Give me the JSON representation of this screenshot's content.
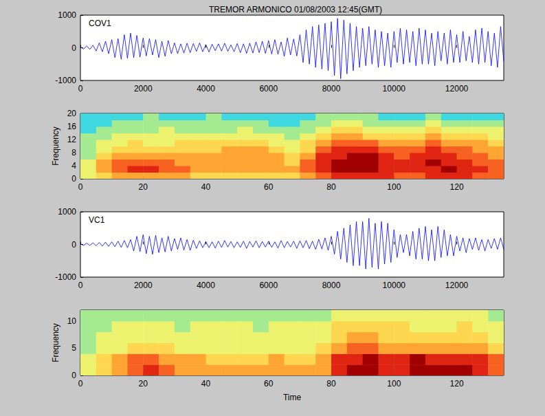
{
  "chart_data": [
    {
      "type": "line",
      "title": "TREMOR ARMONICO 01/08/2003 12:45(GMT)",
      "annotation": "COV1",
      "color": "#0000ff",
      "xlim": [
        0,
        13500
      ],
      "xticks": [
        0,
        2000,
        4000,
        6000,
        8000,
        10000,
        12000
      ],
      "ylim": [
        -1000,
        1000
      ],
      "yticks": [
        -1000,
        0,
        1000
      ],
      "x": [
        0,
        100,
        200,
        300,
        400,
        500,
        600,
        700,
        800,
        900,
        1000,
        1100,
        1200,
        1300,
        1400,
        1500,
        1600,
        1700,
        1800,
        1900,
        2000,
        2100,
        2200,
        2300,
        2400,
        2500,
        2600,
        2700,
        2800,
        2900,
        3000,
        3100,
        3200,
        3300,
        3400,
        3500,
        3600,
        3700,
        3800,
        3900,
        4000,
        4100,
        4200,
        4300,
        4400,
        4500,
        4600,
        4700,
        4800,
        4900,
        5000,
        5100,
        5200,
        5300,
        5400,
        5500,
        5600,
        5700,
        5800,
        5900,
        6000,
        6100,
        6200,
        6300,
        6400,
        6500,
        6600,
        6700,
        6800,
        6900,
        7000,
        7100,
        7200,
        7300,
        7400,
        7500,
        7600,
        7700,
        7800,
        7900,
        8000,
        8100,
        8200,
        8300,
        8400,
        8500,
        8600,
        8700,
        8800,
        8900,
        9000,
        9100,
        9200,
        9300,
        9400,
        9500,
        9600,
        9700,
        9800,
        9900,
        10000,
        10100,
        10200,
        10300,
        10400,
        10500,
        10600,
        10700,
        10800,
        10900,
        11000,
        11100,
        11200,
        11300,
        11400,
        11500,
        11600,
        11700,
        11800,
        11900,
        12000,
        12100,
        12200,
        12300,
        12400,
        12500,
        12600,
        12700,
        12800,
        12900,
        13000,
        13100,
        13200,
        13300,
        13400,
        13500
      ],
      "values": [
        30,
        -40,
        60,
        -50,
        80,
        -100,
        150,
        -120,
        200,
        -180,
        250,
        -300,
        280,
        -350,
        400,
        -320,
        450,
        -300,
        380,
        -280,
        300,
        -250,
        280,
        -220,
        250,
        -300,
        200,
        -260,
        220,
        -180,
        150,
        -180,
        120,
        -160,
        140,
        -150,
        130,
        -110,
        150,
        -120,
        100,
        -130,
        110,
        -90,
        120,
        -100,
        140,
        -110,
        90,
        -120,
        130,
        -150,
        120,
        -170,
        140,
        -160,
        180,
        -150,
        200,
        -170,
        220,
        -190,
        250,
        -200,
        180,
        -260,
        300,
        -220,
        270,
        -250,
        400,
        -450,
        550,
        -500,
        650,
        -600,
        700,
        -650,
        750,
        -700,
        800,
        -850,
        900,
        -950,
        850,
        -800,
        750,
        -700,
        650,
        -600,
        600,
        -550,
        650,
        -500,
        550,
        -600,
        500,
        -550,
        450,
        -600,
        500,
        -450,
        600,
        -500,
        550,
        -450,
        500,
        -550,
        600,
        -500,
        550,
        -500,
        450,
        -550,
        500,
        -400,
        450,
        -500,
        550,
        -450,
        400,
        -450,
        500,
        -400,
        350,
        -450,
        550,
        -500,
        600,
        -450,
        500,
        -550,
        450,
        -600,
        650,
        -400
      ]
    },
    {
      "type": "heatmap",
      "ylabel": "Frequency",
      "xlim": [
        0,
        135
      ],
      "xticks": [
        0,
        20,
        40,
        60,
        80,
        100,
        120
      ],
      "ylim": [
        0,
        20
      ],
      "yticks": [
        0,
        4,
        8,
        12,
        16,
        20
      ],
      "time_bins": [
        0,
        5,
        10,
        15,
        20,
        25,
        30,
        35,
        40,
        45,
        50,
        55,
        60,
        65,
        70,
        75,
        80,
        85,
        90,
        95,
        100,
        105,
        110,
        115,
        120,
        125,
        130,
        135
      ],
      "frequency_bins": [
        0,
        2,
        4,
        6,
        8,
        10,
        12,
        14,
        16,
        18,
        20
      ],
      "intensity": [
        [
          4,
          5,
          6,
          6,
          6,
          6,
          6,
          5,
          5,
          5,
          5,
          5,
          5,
          5,
          6,
          7,
          8,
          8,
          8,
          8,
          7,
          7,
          8,
          8,
          8,
          7,
          7
        ],
        [
          4,
          6,
          7,
          8,
          8,
          7,
          7,
          6,
          6,
          6,
          6,
          6,
          6,
          6,
          7,
          8,
          9,
          9,
          9,
          8,
          8,
          8,
          8,
          9,
          8,
          8,
          7
        ],
        [
          4,
          6,
          7,
          7,
          7,
          7,
          6,
          6,
          6,
          6,
          6,
          6,
          6,
          5,
          7,
          8,
          9,
          9,
          9,
          8,
          8,
          8,
          9,
          8,
          8,
          7,
          7
        ],
        [
          3,
          5,
          6,
          6,
          6,
          6,
          6,
          6,
          6,
          6,
          6,
          6,
          6,
          5,
          6,
          8,
          8,
          9,
          9,
          8,
          7,
          8,
          8,
          8,
          7,
          7,
          6
        ],
        [
          3,
          4,
          5,
          5,
          5,
          5,
          5,
          5,
          5,
          6,
          6,
          6,
          5,
          4,
          5,
          7,
          8,
          8,
          8,
          7,
          7,
          7,
          8,
          7,
          7,
          6,
          6
        ],
        [
          3,
          4,
          4,
          5,
          4,
          4,
          5,
          5,
          5,
          5,
          5,
          5,
          4,
          4,
          5,
          6,
          7,
          7,
          7,
          6,
          6,
          6,
          7,
          6,
          6,
          6,
          5
        ],
        [
          3,
          3,
          4,
          4,
          4,
          4,
          4,
          4,
          4,
          4,
          4,
          4,
          4,
          3,
          4,
          5,
          6,
          6,
          5,
          5,
          5,
          5,
          6,
          5,
          5,
          5,
          4
        ],
        [
          2,
          3,
          3,
          3,
          3,
          4,
          3,
          3,
          3,
          3,
          4,
          3,
          3,
          3,
          3,
          4,
          5,
          5,
          4,
          4,
          4,
          4,
          5,
          4,
          4,
          4,
          4
        ],
        [
          2,
          2,
          3,
          3,
          3,
          3,
          3,
          3,
          3,
          3,
          3,
          3,
          2,
          2,
          3,
          3,
          4,
          4,
          3,
          3,
          3,
          3,
          4,
          3,
          3,
          3,
          3
        ],
        [
          2,
          2,
          2,
          2,
          3,
          2,
          2,
          2,
          3,
          2,
          2,
          2,
          2,
          2,
          2,
          3,
          3,
          3,
          3,
          2,
          2,
          2,
          3,
          2,
          2,
          2,
          2
        ]
      ]
    },
    {
      "type": "line",
      "annotation": "VC1",
      "color": "#0000ff",
      "xlim": [
        0,
        13500
      ],
      "xticks": [
        0,
        2000,
        4000,
        6000,
        8000,
        10000,
        12000
      ],
      "ylim": [
        -1000,
        1000
      ],
      "yticks": [
        -1000,
        0,
        1000
      ],
      "x": [
        0,
        100,
        200,
        300,
        400,
        500,
        600,
        700,
        800,
        900,
        1000,
        1100,
        1200,
        1300,
        1400,
        1500,
        1600,
        1700,
        1800,
        1900,
        2000,
        2100,
        2200,
        2300,
        2400,
        2500,
        2600,
        2700,
        2800,
        2900,
        3000,
        3100,
        3200,
        3300,
        3400,
        3500,
        3600,
        3700,
        3800,
        3900,
        4000,
        4100,
        4200,
        4300,
        4400,
        4500,
        4600,
        4700,
        4800,
        4900,
        5000,
        5100,
        5200,
        5300,
        5400,
        5500,
        5600,
        5700,
        5800,
        5900,
        6000,
        6100,
        6200,
        6300,
        6400,
        6500,
        6600,
        6700,
        6800,
        6900,
        7000,
        7100,
        7200,
        7300,
        7400,
        7500,
        7600,
        7700,
        7800,
        7900,
        8000,
        8100,
        8200,
        8300,
        8400,
        8500,
        8600,
        8700,
        8800,
        8900,
        9000,
        9100,
        9200,
        9300,
        9400,
        9500,
        9600,
        9700,
        9800,
        9900,
        10000,
        10100,
        10200,
        10300,
        10400,
        10500,
        10600,
        10700,
        10800,
        10900,
        11000,
        11100,
        11200,
        11300,
        11400,
        11500,
        11600,
        11700,
        11800,
        11900,
        12000,
        12100,
        12200,
        12300,
        12400,
        12500,
        12600,
        12700,
        12800,
        12900,
        13000,
        13100,
        13200,
        13300,
        13400,
        13500
      ],
      "values": [
        20,
        -30,
        40,
        -30,
        50,
        -40,
        60,
        -50,
        70,
        -60,
        80,
        -70,
        100,
        -90,
        120,
        -100,
        150,
        -200,
        250,
        -220,
        300,
        -280,
        250,
        -300,
        280,
        -250,
        200,
        -230,
        250,
        -200,
        180,
        -150,
        200,
        -170,
        150,
        -180,
        130,
        -120,
        110,
        -100,
        90,
        -100,
        80,
        -110,
        100,
        -90,
        120,
        -80,
        90,
        -100,
        80,
        -90,
        100,
        -120,
        90,
        -80,
        110,
        -100,
        90,
        -80,
        100,
        -90,
        80,
        -110,
        120,
        -100,
        90,
        -80,
        100,
        -120,
        110,
        -100,
        120,
        -130,
        100,
        -150,
        160,
        -140,
        200,
        -180,
        250,
        -300,
        400,
        -450,
        500,
        -550,
        600,
        -650,
        700,
        -650,
        700,
        -750,
        800,
        -700,
        650,
        -750,
        700,
        -600,
        650,
        -550,
        450,
        -400,
        300,
        -250,
        300,
        -350,
        400,
        -450,
        500,
        -450,
        550,
        -500,
        450,
        -500,
        550,
        -400,
        450,
        -350,
        300,
        -350,
        250,
        -200,
        200,
        -250,
        180,
        -150,
        200,
        -180,
        150,
        -200,
        150,
        -120,
        180,
        -150,
        200,
        -150
      ]
    },
    {
      "type": "heatmap",
      "ylabel": "Frequency",
      "xlabel": "Time",
      "xlim": [
        0,
        135
      ],
      "xticks": [
        0,
        20,
        40,
        60,
        80,
        100,
        120
      ],
      "ylim": [
        0,
        12
      ],
      "yticks": [
        0,
        5,
        10
      ],
      "time_bins": [
        0,
        5,
        10,
        15,
        20,
        25,
        30,
        35,
        40,
        45,
        50,
        55,
        60,
        65,
        70,
        75,
        80,
        85,
        90,
        95,
        100,
        105,
        110,
        115,
        120,
        125,
        130,
        135
      ],
      "frequency_bins": [
        0,
        2,
        4,
        6,
        8,
        10,
        12
      ],
      "intensity": [
        [
          4,
          5,
          6,
          7,
          8,
          7,
          6,
          6,
          6,
          6,
          6,
          6,
          6,
          6,
          6,
          6,
          8,
          9,
          9,
          8,
          8,
          9,
          9,
          9,
          9,
          8,
          7
        ],
        [
          4,
          5,
          6,
          7,
          7,
          6,
          6,
          6,
          5,
          5,
          5,
          5,
          6,
          5,
          5,
          6,
          8,
          8,
          9,
          8,
          8,
          9,
          8,
          8,
          8,
          8,
          7
        ],
        [
          3,
          4,
          4,
          5,
          5,
          5,
          4,
          4,
          4,
          4,
          4,
          4,
          4,
          4,
          4,
          5,
          6,
          7,
          7,
          6,
          6,
          6,
          6,
          6,
          6,
          6,
          5
        ],
        [
          3,
          4,
          4,
          4,
          4,
          4,
          4,
          4,
          4,
          4,
          4,
          4,
          4,
          4,
          4,
          4,
          5,
          6,
          6,
          5,
          5,
          5,
          5,
          5,
          5,
          5,
          4
        ],
        [
          3,
          3,
          4,
          4,
          4,
          4,
          3,
          4,
          4,
          4,
          4,
          3,
          4,
          4,
          4,
          4,
          5,
          5,
          5,
          5,
          5,
          4,
          4,
          4,
          5,
          4,
          4
        ],
        [
          3,
          3,
          3,
          3,
          3,
          3,
          3,
          3,
          3,
          3,
          3,
          3,
          3,
          3,
          3,
          3,
          4,
          4,
          4,
          4,
          4,
          4,
          4,
          4,
          4,
          4,
          3
        ]
      ]
    }
  ]
}
